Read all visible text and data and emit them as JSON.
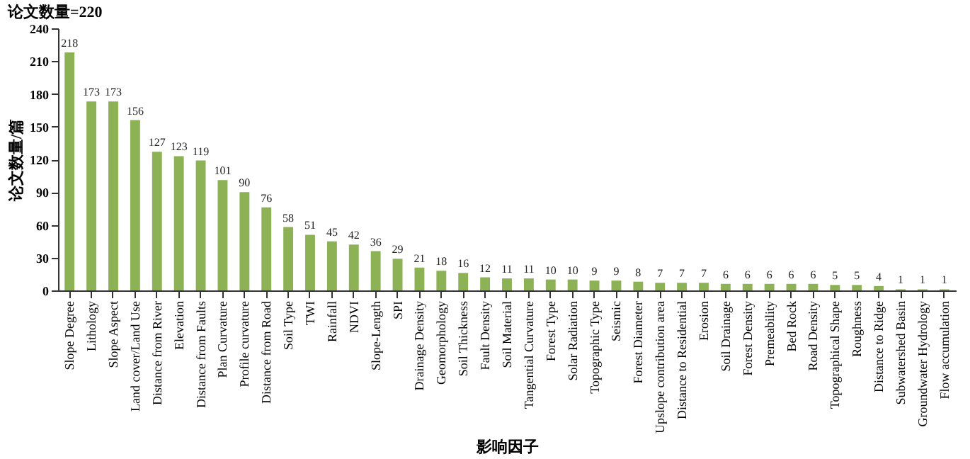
{
  "chart_data": {
    "type": "bar",
    "title": "论文数量=220",
    "xlabel": "影响因子",
    "ylabel": "论文数量/篇",
    "categories": [
      "Slope Degree",
      "Lithology",
      "Slope Aspect",
      "Land cover/Land Use",
      "Distance from River",
      "Elevation",
      "Distance from Faults",
      "Plan Curvature",
      "Profile curvature",
      "Distance from Road",
      "Soil Type",
      "TWI",
      "Rainfall",
      "NDVI",
      "Slope-Length",
      "SPI",
      "Drainage Density",
      "Geomorphology",
      "Soil Thickness",
      "Fault Density",
      "Soil Material",
      "Tangential Curvature",
      "Forest Type",
      "Solar Radiation",
      "Topographic Type",
      "Seismic",
      "Forest Diameter",
      "Upslope contribution area",
      "Distance to Residential",
      "Erosion",
      "Soil Drainage",
      "Forest Density",
      "Premeability",
      "Bed Rock",
      "Road Density",
      "Topographical Shape",
      "Roughness",
      "Distance to Ridge",
      "Subwatershed Basin",
      "Groundwater Hydrology",
      "Flow accumulation"
    ],
    "values": [
      218,
      173,
      173,
      156,
      127,
      123,
      119,
      101,
      90,
      76,
      58,
      51,
      45,
      42,
      36,
      29,
      21,
      18,
      16,
      12,
      11,
      11,
      10,
      10,
      9,
      9,
      8,
      7,
      7,
      7,
      6,
      6,
      6,
      6,
      6,
      5,
      5,
      4,
      1,
      1,
      1
    ],
    "color": "#8db255",
    "ylim": [
      0,
      240
    ],
    "yticks": [
      0,
      30,
      60,
      90,
      120,
      150,
      180,
      210,
      240
    ],
    "grid": false,
    "data_labels": true
  }
}
